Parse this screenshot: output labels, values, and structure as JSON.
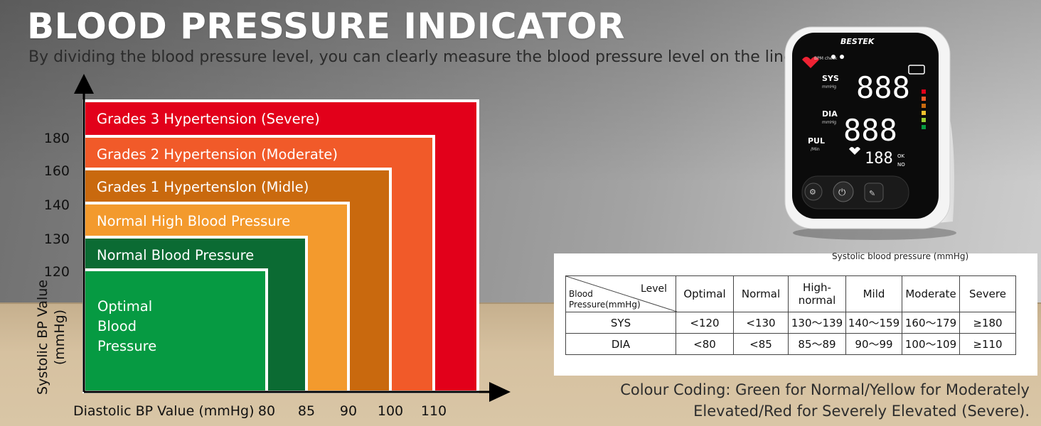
{
  "header": {
    "title": "BLOOD PRESSURE INDICATOR",
    "subtitle": "By dividing the blood pressure level, you can clearly measure the blood pressure level on the line."
  },
  "chart_data": {
    "type": "area",
    "title": "",
    "xlabel": "Diastolic BP Value (mmHg)",
    "ylabel_lines": [
      "Systolic BP Value",
      "(mmHg)"
    ],
    "x_ticks": [
      "80",
      "85",
      "90",
      "100",
      "110"
    ],
    "y_ticks": [
      "120",
      "130",
      "140",
      "160",
      "180"
    ],
    "zones": [
      {
        "name": "Grades 3 Hypertension (Severe)",
        "label_lines": [
          "Grades 3 Hypertension (Severe)"
        ],
        "color": "#e2001a"
      },
      {
        "name": "Grades 2 Hypertension (Moderate)",
        "label_lines": [
          "Grades 2 Hypertension (Moderate)"
        ],
        "color": "#f15a29",
        "systolic_max": 180,
        "diastolic_max": 110
      },
      {
        "name": "Grades 1 Hypertension (Midle)",
        "label_lines": [
          "Grades 1 Hypertenslon (Midle)"
        ],
        "color": "#c9690e",
        "systolic_max": 160,
        "diastolic_max": 100
      },
      {
        "name": "Normal High Blood Pressure",
        "label_lines": [
          "Normal High Blood Pressure"
        ],
        "color": "#f39a2d",
        "systolic_max": 140,
        "diastolic_max": 90
      },
      {
        "name": "Normal Blood Pressure",
        "label_lines": [
          "Normal Blood Pressure"
        ],
        "color": "#0b6b33",
        "systolic_max": 130,
        "diastolic_max": 85
      },
      {
        "name": "Optimal Blood Pressure",
        "label_lines": [
          "Optimal",
          "Blood",
          "Pressure"
        ],
        "color": "#069a42",
        "systolic_max": 120,
        "diastolic_max": 80
      }
    ]
  },
  "table": {
    "caption": "Systolic blood pressure (mmHg)",
    "corner_top": "Level",
    "corner_bottom_1": "Blood",
    "corner_bottom_2": "Pressure(mmHg)",
    "headers": [
      "Optimal",
      "Normal",
      "High-\nnormal",
      "Mild",
      "Moderate",
      "Severe"
    ],
    "rows": [
      {
        "label": "SYS",
        "cells": [
          "<120",
          "<130",
          "130～139",
          "140～159",
          "160～179",
          "≥180"
        ]
      },
      {
        "label": "DIA",
        "cells": [
          "<80",
          "<85",
          "85～89",
          "90～99",
          "100～109",
          "≥110"
        ]
      }
    ]
  },
  "note": "Colour Coding: Green for Normal/Yellow for Moderately Elevated/Red for Severely Elevated (Severe).",
  "device": {
    "brand": "BESTEK",
    "bpm_check": "BPM check",
    "sys_label": "SYS",
    "dia_label": "DIA",
    "pul_label": "PUL",
    "unit": "mmHg",
    "pul_unit": "/Min",
    "sys_digits": "888",
    "dia_digits": "888",
    "mem_digits": "188",
    "ok": "OK",
    "no": "NO"
  }
}
